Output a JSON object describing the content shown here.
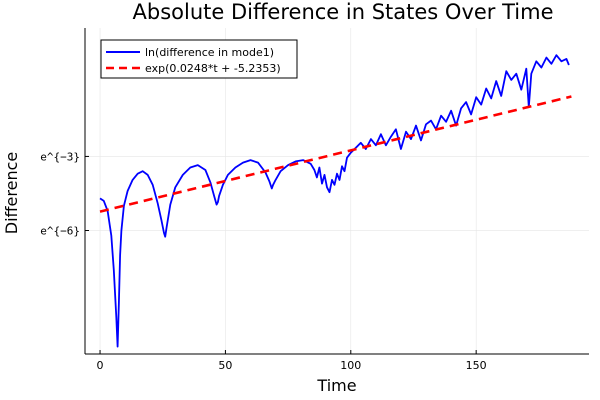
{
  "chart_data": {
    "type": "line",
    "title": "Absolute Difference in States Over Time",
    "xlabel": "Time",
    "ylabel": "Difference",
    "xlim": [
      -6,
      195
    ],
    "ylim": [
      -11.0,
      2.2
    ],
    "x_ticks": [
      0,
      50,
      100,
      150
    ],
    "x_tick_labels": [
      "0",
      "50",
      "100",
      "150"
    ],
    "y_ticks": [
      -3,
      -6
    ],
    "y_tick_labels": [
      "e^{−3}",
      "e^{−6}"
    ],
    "y_scale_note": "y shown as ln(value)",
    "grid": true,
    "legend_position": "top-left",
    "series": [
      {
        "name": "ln(difference in mode1)",
        "style": "solid",
        "color": "#0000ff",
        "x": [
          0,
          1.5,
          3,
          4.5,
          5.5,
          6.5,
          7,
          7.5,
          8,
          8.5,
          9.5,
          11,
          13,
          15,
          17,
          19,
          21,
          23,
          24.5,
          25.5,
          26,
          26.5,
          28,
          30,
          33,
          36,
          39,
          42,
          44,
          45.5,
          46.5,
          47,
          47.5,
          49,
          51,
          54,
          57,
          60,
          63,
          66,
          67.5,
          68.5,
          69,
          70,
          72,
          75,
          78,
          81,
          84,
          85.5,
          86.5,
          87.5,
          88.5,
          89.5,
          90.5,
          91.5,
          92.5,
          93.5,
          94.5,
          95.5,
          96.5,
          97.5,
          98.5,
          100,
          102,
          104,
          106,
          108,
          110,
          112,
          114,
          116,
          118,
          120,
          122,
          124,
          126,
          128,
          130,
          132,
          134,
          136,
          138,
          140,
          142,
          144,
          146,
          148,
          150,
          152,
          154,
          156,
          158,
          160,
          162,
          164,
          166,
          168,
          170,
          171,
          172,
          174,
          176,
          178,
          180,
          182,
          184,
          186,
          187
        ],
        "y": [
          -4.7,
          -4.8,
          -5.2,
          -6.2,
          -7.6,
          -9.5,
          -10.7,
          -8.9,
          -7.0,
          -6.0,
          -5.0,
          -4.4,
          -3.95,
          -3.7,
          -3.6,
          -3.75,
          -4.15,
          -4.9,
          -5.6,
          -6.1,
          -6.25,
          -5.9,
          -4.95,
          -4.25,
          -3.75,
          -3.45,
          -3.35,
          -3.55,
          -4.05,
          -4.6,
          -4.95,
          -4.85,
          -4.6,
          -4.15,
          -3.75,
          -3.45,
          -3.25,
          -3.15,
          -3.25,
          -3.65,
          -4.0,
          -4.3,
          -4.15,
          -3.95,
          -3.6,
          -3.35,
          -3.2,
          -3.15,
          -3.3,
          -3.55,
          -3.85,
          -3.45,
          -4.1,
          -3.75,
          -4.25,
          -4.45,
          -3.95,
          -4.15,
          -3.7,
          -3.95,
          -3.4,
          -3.6,
          -3.05,
          -2.85,
          -2.65,
          -2.45,
          -2.7,
          -2.3,
          -2.55,
          -2.1,
          -2.55,
          -2.2,
          -1.9,
          -2.7,
          -2.0,
          -2.3,
          -1.75,
          -2.35,
          -1.7,
          -1.55,
          -1.9,
          -1.35,
          -1.6,
          -1.15,
          -1.75,
          -1.05,
          -0.8,
          -1.3,
          -0.6,
          -0.9,
          -0.25,
          -0.65,
          0.05,
          -0.55,
          0.45,
          0.1,
          0.35,
          -0.3,
          0.55,
          -1.0,
          0.35,
          0.85,
          0.6,
          1.0,
          0.75,
          1.1,
          0.85,
          0.95,
          0.7
        ]
      },
      {
        "name": "exp(0.0248*t + -5.2353)",
        "style": "dashed",
        "color": "#ff0000",
        "x": [
          0,
          188
        ],
        "y": [
          -5.2353,
          -0.5729
        ]
      }
    ]
  }
}
